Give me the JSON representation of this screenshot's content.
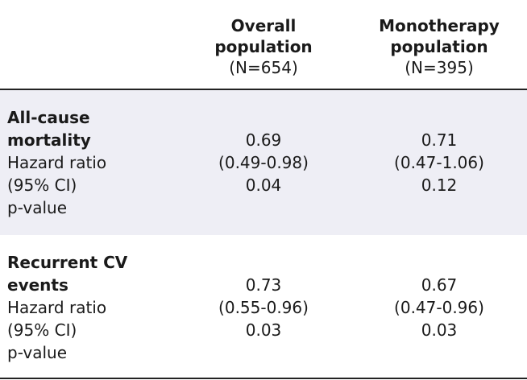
{
  "header": {
    "col1": {
      "title_line1": "Overall",
      "title_line2": "population",
      "n": "(N=654)"
    },
    "col2": {
      "title_line1": "Monotherapy",
      "title_line2": "population",
      "n": "(N=395)"
    }
  },
  "rows": [
    {
      "label_bold_line1": "All-cause",
      "label_bold_line2": "mortality",
      "label_line3": "Hazard ratio",
      "label_line4": "(95% CI)",
      "label_line5": "p-value",
      "col1": {
        "hr": "0.69",
        "ci": "(0.49-0.98)",
        "p": "0.04"
      },
      "col2": {
        "hr": "0.71",
        "ci": "(0.47-1.06)",
        "p": "0.12"
      }
    },
    {
      "label_bold_line1": "Recurrent CV",
      "label_bold_line2": "events",
      "label_line3": "Hazard ratio",
      "label_line4": "(95% CI)",
      "label_line5": "p-value",
      "col1": {
        "hr": "0.73",
        "ci": "(0.55-0.96)",
        "p": "0.03"
      },
      "col2": {
        "hr": "0.67",
        "ci": "(0.47-0.96)",
        "p": "0.03"
      }
    }
  ],
  "colors": {
    "shaded_row": "#eeeef5",
    "rule": "#222222",
    "text": "#1a1a1a"
  }
}
